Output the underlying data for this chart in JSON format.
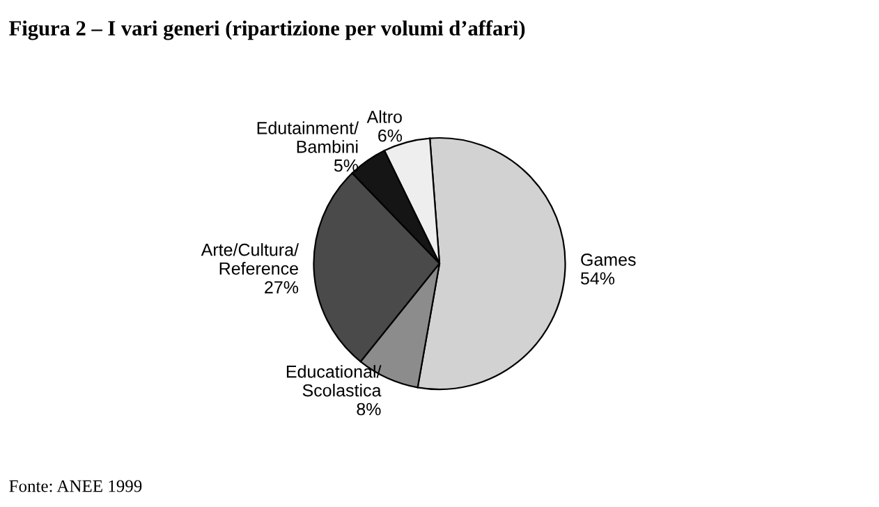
{
  "chart_data": {
    "type": "pie",
    "title": "Figura 2 – I vari generi (ripartizione per volumi d’affari)",
    "categories": [
      "Games",
      "Altro",
      "Edutainment/\nBambini",
      "Arte/Cultura/\nReference",
      "Educational/\nScolastica"
    ],
    "values": [
      54,
      6,
      5,
      27,
      8
    ],
    "value_labels": [
      "54%",
      "6%",
      "5%",
      "27%",
      "8%"
    ],
    "colors": [
      "#d2d2d2",
      "#eeeeee",
      "#151515",
      "#4a4a4a",
      "#8c8c8c"
    ],
    "annotations": [
      "Fonte: ANEE 1999"
    ]
  }
}
